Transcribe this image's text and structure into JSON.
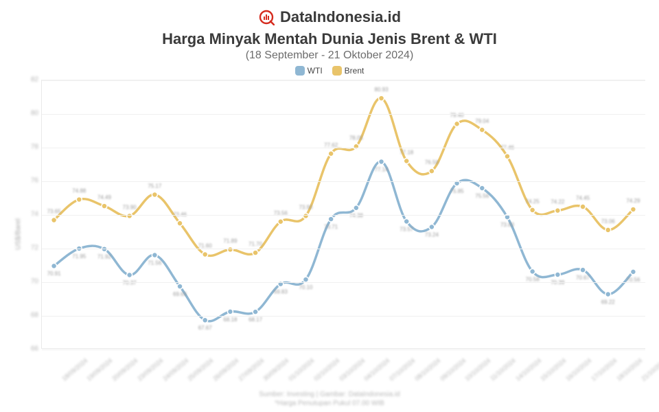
{
  "brand": {
    "name": "DataIndonesia.id",
    "icon_color": "#d52b1e"
  },
  "title": "Harga Minyak Mentah Dunia Jenis Brent & WTI",
  "subtitle": "(18 September - 21 Oktober 2024)",
  "ylabel": "US$/Barel",
  "footer_line1": "Sumber: Investing | Gambar: DataIndonesia.id",
  "footer_line2": "*Harga Penutupan Pukul 07.00 WIB",
  "legend": [
    {
      "label": "WTI",
      "color": "#8fb7d3"
    },
    {
      "label": "Brent",
      "color": "#e9c46a"
    }
  ],
  "chart": {
    "type": "line",
    "background_color": "#ffffff",
    "grid_color": "#f0f0f0",
    "line_width": 3.5,
    "marker_radius": 4,
    "label_fontsize": 8,
    "ylim": [
      66,
      82
    ],
    "yticks": [
      66,
      68,
      70,
      72,
      74,
      76,
      78,
      80,
      82
    ],
    "x_rotation_deg": -40,
    "categories": [
      "18/09/2024",
      "19/09/2024",
      "20/09/2024",
      "23/09/2024",
      "24/09/2024",
      "25/09/2024",
      "26/09/2024",
      "27/09/2024",
      "30/09/2024",
      "01/10/2024",
      "02/10/2024",
      "03/10/2024",
      "04/10/2024",
      "07/10/2024",
      "08/10/2024",
      "09/10/2024",
      "10/10/2024",
      "11/10/2024",
      "14/10/2024",
      "15/10/2024",
      "16/10/2024",
      "17/10/2024",
      "18/10/2024",
      "21/10/2024"
    ],
    "series": [
      {
        "name": "Brent",
        "color": "#e9c46a",
        "label_offset_y": -10,
        "values": [
          73.65,
          74.88,
          74.49,
          73.9,
          75.17,
          73.46,
          71.6,
          71.89,
          71.7,
          73.56,
          73.9,
          77.62,
          78.05,
          80.93,
          77.18,
          76.58,
          79.4,
          79.04,
          77.46,
          74.25,
          74.22,
          74.45,
          73.06,
          74.29
        ]
      },
      {
        "name": "WTI",
        "color": "#8fb7d3",
        "label_offset_y": 14,
        "values": [
          70.91,
          71.95,
          71.92,
          70.37,
          71.56,
          69.69,
          67.67,
          68.18,
          68.17,
          69.83,
          70.1,
          73.71,
          74.38,
          77.14,
          73.57,
          73.24,
          75.85,
          75.56,
          73.83,
          70.58,
          70.39,
          70.67,
          69.22,
          70.56
        ]
      }
    ]
  }
}
